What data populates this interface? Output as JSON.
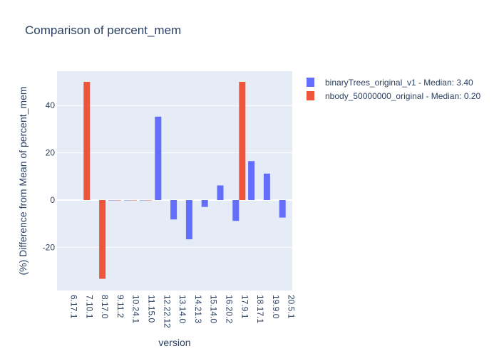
{
  "chart_data": {
    "type": "bar",
    "title": "Comparison of percent_mem",
    "xlabel": "version",
    "ylabel": "(%) Difference from Mean of percent_mem",
    "categories": [
      "6.17.1",
      "7.10.1",
      "8.17.0",
      "9.11.2",
      "10.24.1",
      "11.15.0",
      "12.22.12",
      "13.14.0",
      "14.21.3",
      "15.14.0",
      "16.20.2",
      "17.9.1",
      "18.17.1",
      "19.9.0",
      "20.5.1"
    ],
    "ylim": [
      -40,
      55
    ],
    "yticks": [
      -20,
      0,
      20,
      40
    ],
    "grid": true,
    "legend_position": "right",
    "series": [
      {
        "name": "binaryTrees_original_v1 - Median: 3.40",
        "color": "#636efa",
        "values": [
          null,
          null,
          null,
          0,
          0,
          0,
          35.3,
          -8.2,
          -16.6,
          -2.9,
          6.2,
          -8.8,
          16.5,
          11.2,
          -7.4
        ]
      },
      {
        "name": "nbody_50000000_original - Median: 0.20",
        "color": "#ef553b",
        "values": [
          null,
          50,
          -33.3,
          0,
          0,
          0,
          null,
          null,
          null,
          null,
          null,
          50,
          null,
          null,
          null
        ]
      }
    ]
  }
}
